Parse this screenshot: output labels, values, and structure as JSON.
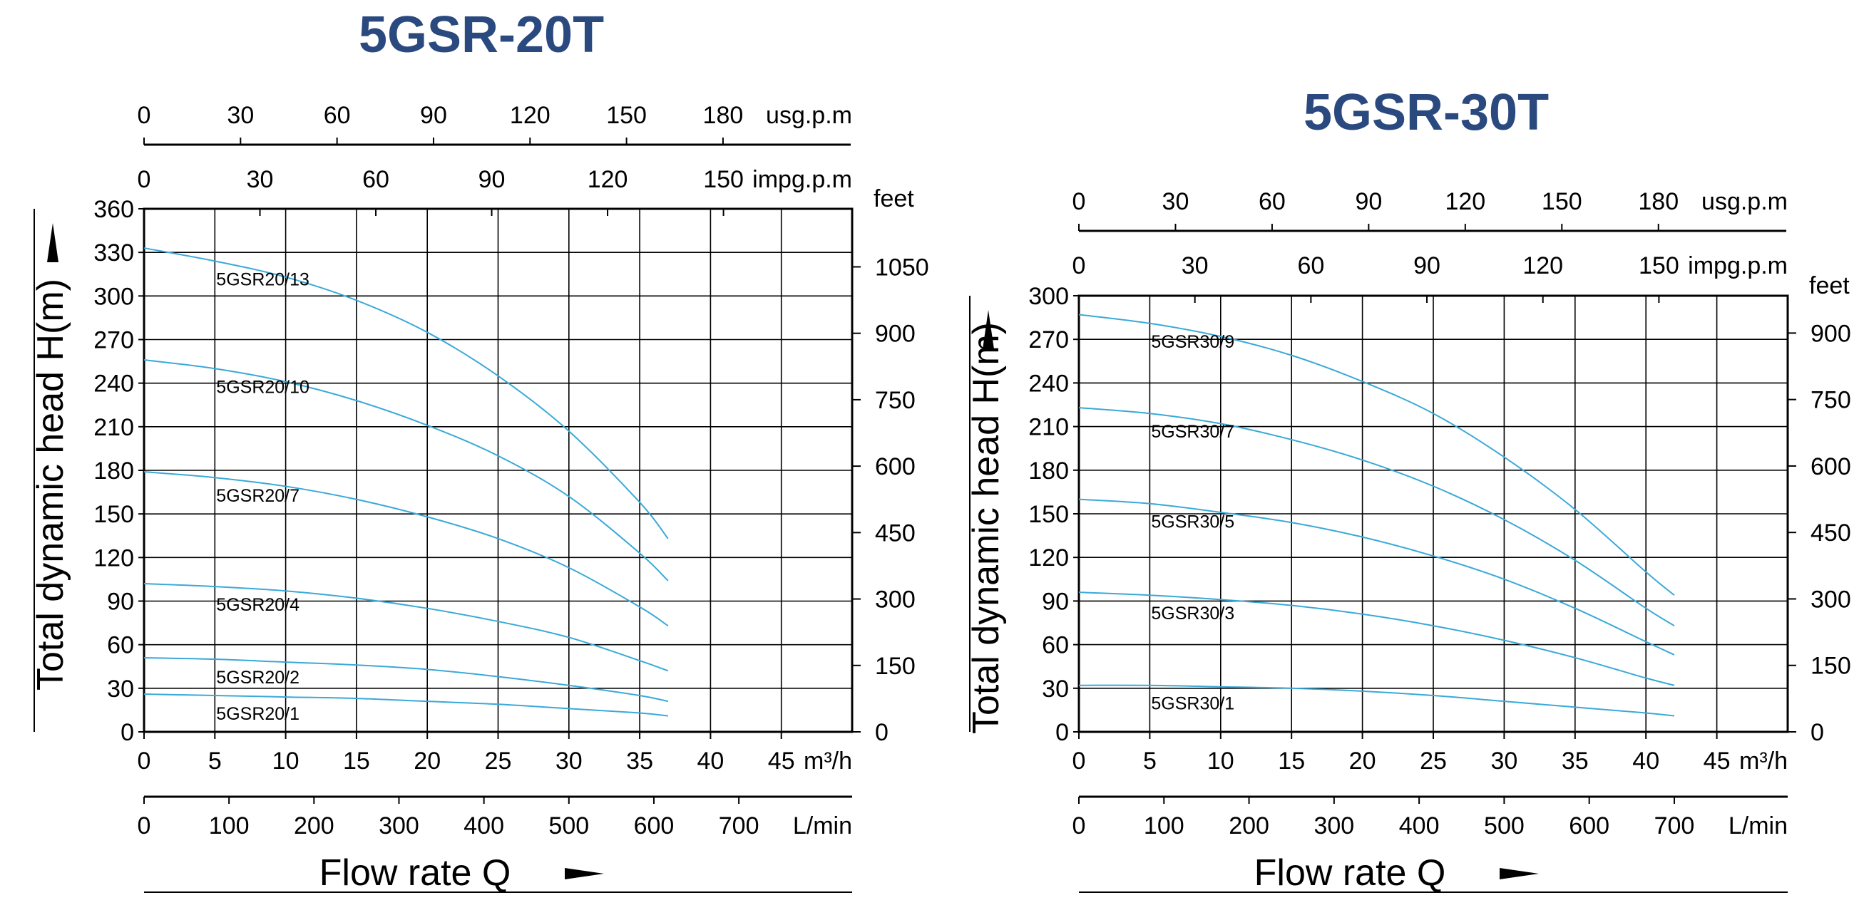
{
  "chart_data": [
    {
      "type": "line",
      "title": "5GSR-20T",
      "ylabel": "Total dynamic head H(m)",
      "xlabel": "Flow rate Q",
      "x_unit": "m³/h",
      "x_ticks": [
        "0",
        "5",
        "10",
        "15",
        "20",
        "25",
        "30",
        "35",
        "40",
        "45"
      ],
      "xlim": [
        0,
        50
      ],
      "ylim": [
        0,
        360
      ],
      "y_ticks": [
        "0",
        "30",
        "60",
        "90",
        "120",
        "150",
        "180",
        "210",
        "240",
        "270",
        "300",
        "330",
        "360"
      ],
      "feet_unit": "feet",
      "feet_ticks": [
        {
          "value": 0,
          "label": "0"
        },
        {
          "value": 150,
          "label": "150"
        },
        {
          "value": 300,
          "label": "300"
        },
        {
          "value": 450,
          "label": "450"
        },
        {
          "value": 600,
          "label": "600"
        },
        {
          "value": 750,
          "label": "750"
        },
        {
          "value": 900,
          "label": "900"
        },
        {
          "value": 1050,
          "label": "1050"
        }
      ],
      "usgpm_unit": "usg.p.m",
      "usgpm_ticks": [
        {
          "value": 0,
          "label": "0"
        },
        {
          "value": 30,
          "label": "30"
        },
        {
          "value": 60,
          "label": "60"
        },
        {
          "value": 90,
          "label": "90"
        },
        {
          "value": 120,
          "label": "120"
        },
        {
          "value": 150,
          "label": "150"
        },
        {
          "value": 180,
          "label": "180"
        }
      ],
      "impgpm_unit": "impg.p.m",
      "impgpm_ticks": [
        {
          "value": 0,
          "label": "0"
        },
        {
          "value": 30,
          "label": "30"
        },
        {
          "value": 60,
          "label": "60"
        },
        {
          "value": 90,
          "label": "90"
        },
        {
          "value": 120,
          "label": "120"
        },
        {
          "value": 150,
          "label": "150"
        }
      ],
      "lmin_unit": "L/min",
      "lmin_ticks": [
        {
          "value": 0,
          "label": "0"
        },
        {
          "value": 100,
          "label": "100"
        },
        {
          "value": 200,
          "label": "200"
        },
        {
          "value": 300,
          "label": "300"
        },
        {
          "value": 400,
          "label": "400"
        },
        {
          "value": 500,
          "label": "500"
        },
        {
          "value": 600,
          "label": "600"
        },
        {
          "value": 700,
          "label": "700"
        }
      ],
      "grid": true,
      "series": [
        {
          "name": "5GSR20/13",
          "x": [
            0,
            5,
            10,
            15,
            20,
            25,
            30,
            35,
            37
          ],
          "y": [
            333,
            324,
            313,
            297,
            275,
            245,
            207,
            158,
            133
          ]
        },
        {
          "name": "5GSR20/10",
          "x": [
            0,
            5,
            10,
            15,
            20,
            25,
            30,
            35,
            37
          ],
          "y": [
            256,
            250,
            241,
            228,
            211,
            190,
            162,
            123,
            104
          ]
        },
        {
          "name": "5GSR20/7",
          "x": [
            0,
            5,
            10,
            15,
            20,
            25,
            30,
            35,
            37
          ],
          "y": [
            179,
            175,
            169,
            160,
            148,
            133,
            113,
            86,
            73
          ]
        },
        {
          "name": "5GSR20/4",
          "x": [
            0,
            5,
            10,
            15,
            20,
            25,
            30,
            35,
            37
          ],
          "y": [
            102,
            100,
            97,
            92,
            85,
            76,
            65,
            49,
            42
          ]
        },
        {
          "name": "5GSR20/2",
          "x": [
            0,
            5,
            10,
            15,
            20,
            25,
            30,
            35,
            37
          ],
          "y": [
            51,
            50,
            48,
            46,
            43,
            38,
            32,
            25,
            21
          ]
        },
        {
          "name": "5GSR20/1",
          "x": [
            0,
            5,
            10,
            15,
            20,
            25,
            30,
            35,
            37
          ],
          "y": [
            26,
            25,
            24,
            23,
            21,
            19,
            16,
            13,
            11
          ]
        }
      ]
    },
    {
      "type": "line",
      "title": "5GSR-30T",
      "ylabel": "Total dynamic head H(m)",
      "xlabel": "Flow rate Q",
      "x_unit": "m³/h",
      "x_ticks": [
        "0",
        "5",
        "10",
        "15",
        "20",
        "25",
        "30",
        "35",
        "40",
        "45"
      ],
      "xlim": [
        0,
        50
      ],
      "ylim": [
        0,
        300
      ],
      "y_ticks": [
        "0",
        "30",
        "60",
        "90",
        "120",
        "150",
        "180",
        "210",
        "240",
        "270",
        "300"
      ],
      "feet_unit": "feet",
      "feet_ticks": [
        {
          "value": 0,
          "label": "0"
        },
        {
          "value": 150,
          "label": "150"
        },
        {
          "value": 300,
          "label": "300"
        },
        {
          "value": 450,
          "label": "450"
        },
        {
          "value": 600,
          "label": "600"
        },
        {
          "value": 750,
          "label": "750"
        },
        {
          "value": 900,
          "label": "900"
        }
      ],
      "usgpm_unit": "usg.p.m",
      "usgpm_ticks": [
        {
          "value": 0,
          "label": "0"
        },
        {
          "value": 30,
          "label": "30"
        },
        {
          "value": 60,
          "label": "60"
        },
        {
          "value": 90,
          "label": "90"
        },
        {
          "value": 120,
          "label": "120"
        },
        {
          "value": 150,
          "label": "150"
        },
        {
          "value": 180,
          "label": "180"
        }
      ],
      "impgpm_unit": "impg.p.m",
      "impgpm_ticks": [
        {
          "value": 0,
          "label": "0"
        },
        {
          "value": 30,
          "label": "30"
        },
        {
          "value": 60,
          "label": "60"
        },
        {
          "value": 90,
          "label": "90"
        },
        {
          "value": 120,
          "label": "120"
        },
        {
          "value": 150,
          "label": "150"
        }
      ],
      "lmin_unit": "L/min",
      "lmin_ticks": [
        {
          "value": 0,
          "label": "0"
        },
        {
          "value": 100,
          "label": "100"
        },
        {
          "value": 200,
          "label": "200"
        },
        {
          "value": 300,
          "label": "300"
        },
        {
          "value": 400,
          "label": "400"
        },
        {
          "value": 500,
          "label": "500"
        },
        {
          "value": 600,
          "label": "600"
        },
        {
          "value": 700,
          "label": "700"
        }
      ],
      "grid": true,
      "series": [
        {
          "name": "5GSR30/9",
          "x": [
            0,
            5,
            10,
            15,
            20,
            25,
            30,
            35,
            40,
            42
          ],
          "y": [
            287,
            281,
            272,
            259,
            241,
            219,
            189,
            153,
            110,
            94
          ]
        },
        {
          "name": "5GSR30/7",
          "x": [
            0,
            5,
            10,
            15,
            20,
            25,
            30,
            35,
            40,
            42
          ],
          "y": [
            223,
            219,
            212,
            201,
            187,
            169,
            146,
            118,
            85,
            73
          ]
        },
        {
          "name": "5GSR30/5",
          "x": [
            0,
            5,
            10,
            15,
            20,
            25,
            30,
            35,
            40,
            42
          ],
          "y": [
            160,
            157,
            151,
            144,
            134,
            121,
            105,
            85,
            62,
            53
          ]
        },
        {
          "name": "5GSR30/3",
          "x": [
            0,
            5,
            10,
            15,
            20,
            25,
            30,
            35,
            40,
            42
          ],
          "y": [
            96,
            94,
            91,
            87,
            81,
            73,
            63,
            51,
            37,
            32
          ]
        },
        {
          "name": "5GSR30/1",
          "x": [
            0,
            5,
            10,
            15,
            20,
            25,
            30,
            35,
            40,
            42
          ],
          "y": [
            32,
            32,
            31,
            30,
            28,
            25,
            21,
            17,
            13,
            11
          ]
        }
      ]
    }
  ]
}
